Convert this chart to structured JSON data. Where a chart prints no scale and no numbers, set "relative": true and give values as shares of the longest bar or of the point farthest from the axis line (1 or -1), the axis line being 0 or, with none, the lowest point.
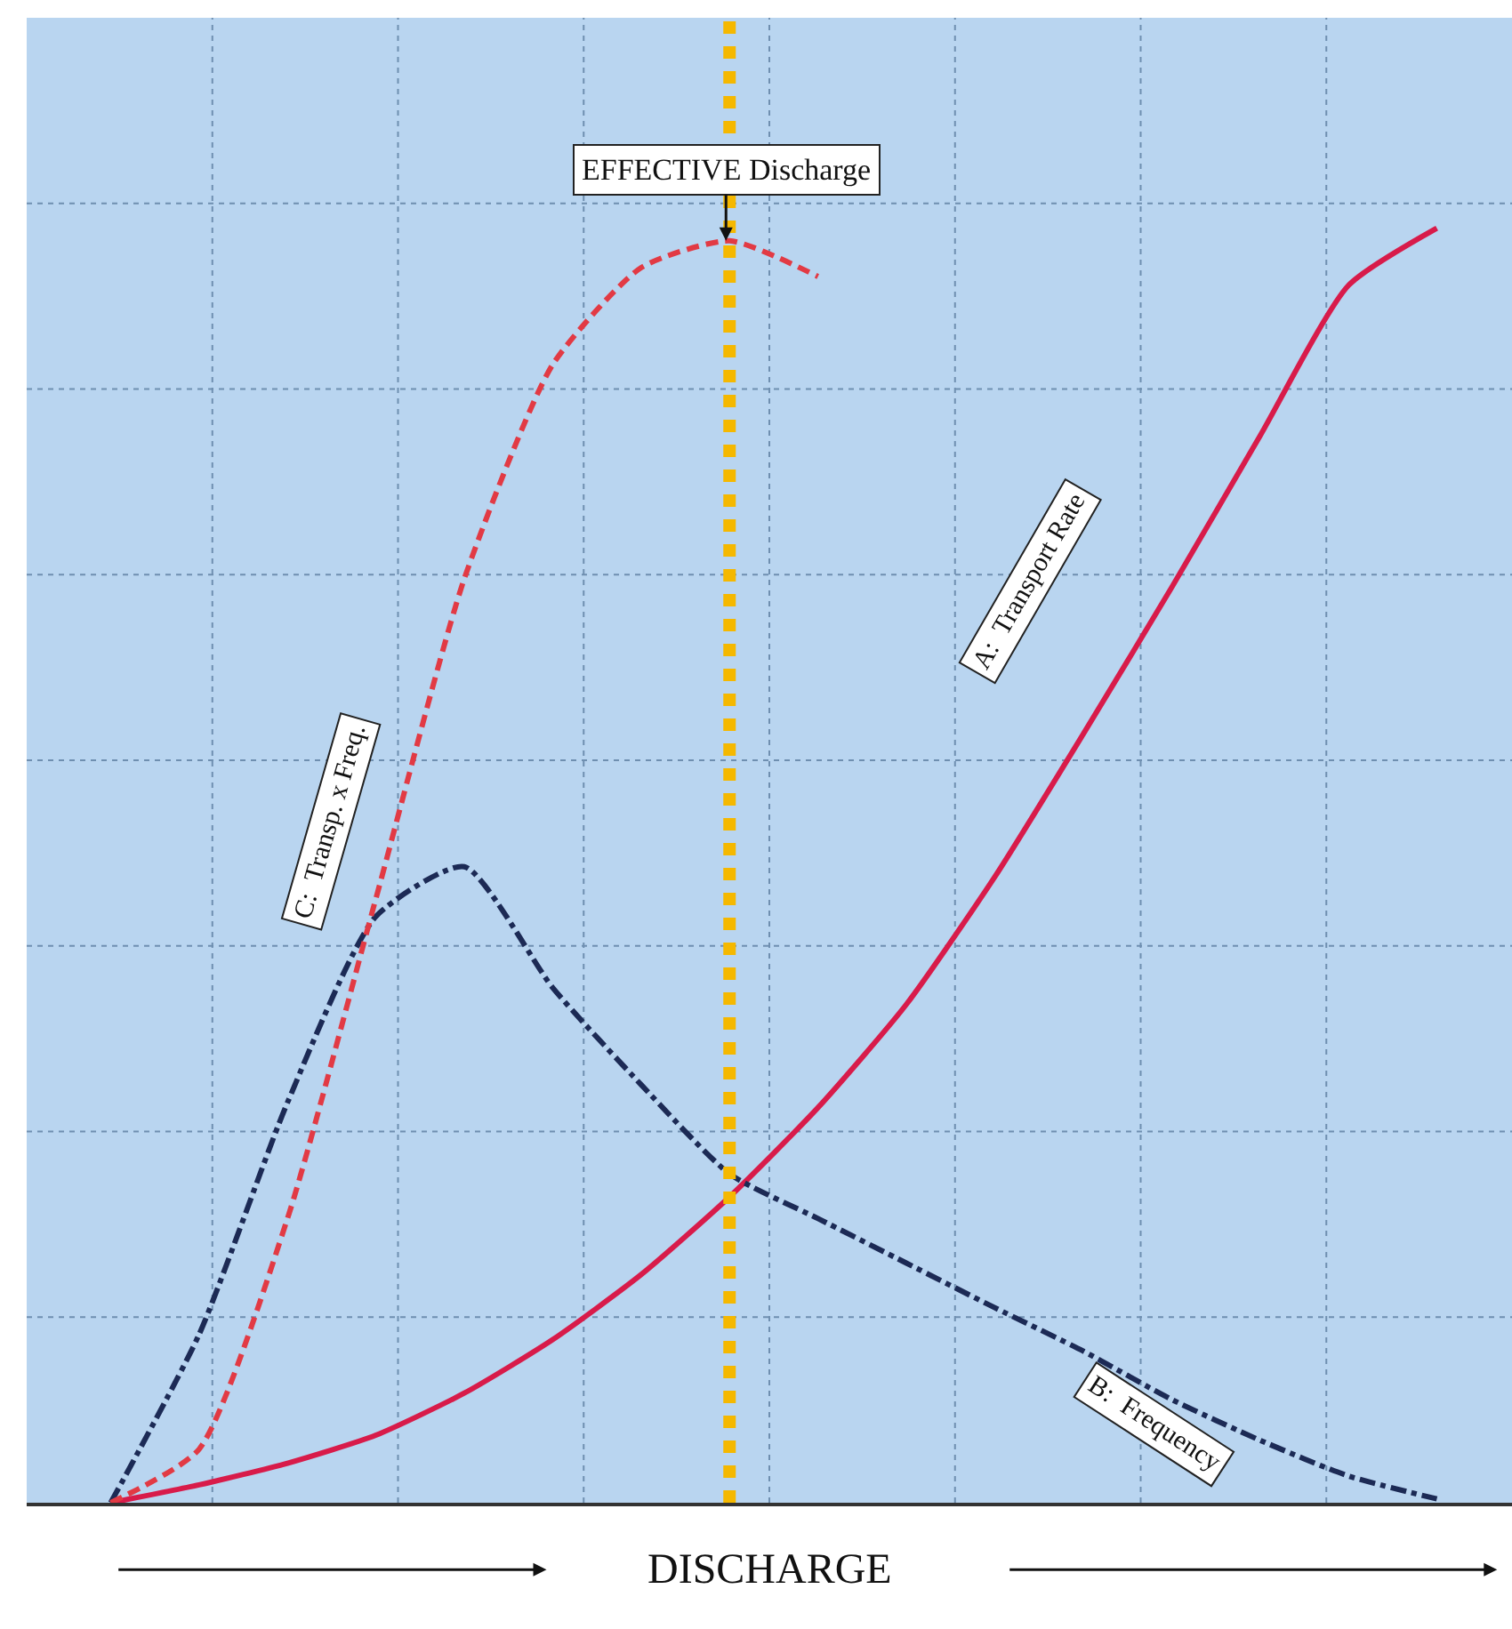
{
  "chart_data": {
    "type": "line",
    "relative": true,
    "xlabel": "DISCHARGE",
    "grid": true,
    "legend": false,
    "marker": "none",
    "categories": [
      null,
      null,
      null,
      null,
      null,
      null,
      null,
      null,
      null,
      null,
      null,
      null,
      null,
      null,
      null,
      null
    ],
    "series": [
      {
        "name": "A:  Transport Rate",
        "color": "#d81b4a",
        "line_style": "solid",
        "values": [
          0,
          0.014,
          0.031,
          0.053,
          0.086,
          0.128,
          0.179,
          0.24,
          0.31,
          0.391,
          0.491,
          0.603,
          0.718,
          0.837,
          0.955,
          1
        ]
      },
      {
        "name": "B:  Frequency",
        "color": "#1c2a55",
        "line_style": "dashdot",
        "values": [
          0,
          0.132,
          0.314,
          0.46,
          0.499,
          0.404,
          0.328,
          0.258,
          0.223,
          0.188,
          0.153,
          0.119,
          0.081,
          0.049,
          0.021,
          0.003
        ]
      },
      {
        "name": "C:  Transp. x Freq.",
        "color": "#e23a44",
        "line_style": "dashed",
        "values": [
          0,
          0.042,
          0.223,
          0.474,
          0.725,
          0.893,
          0.969,
          0.99,
          0.962,
          null,
          null,
          null,
          null,
          null,
          null,
          null
        ]
      }
    ],
    "annotations": [
      "EFFECTIVE Discharge"
    ]
  }
}
